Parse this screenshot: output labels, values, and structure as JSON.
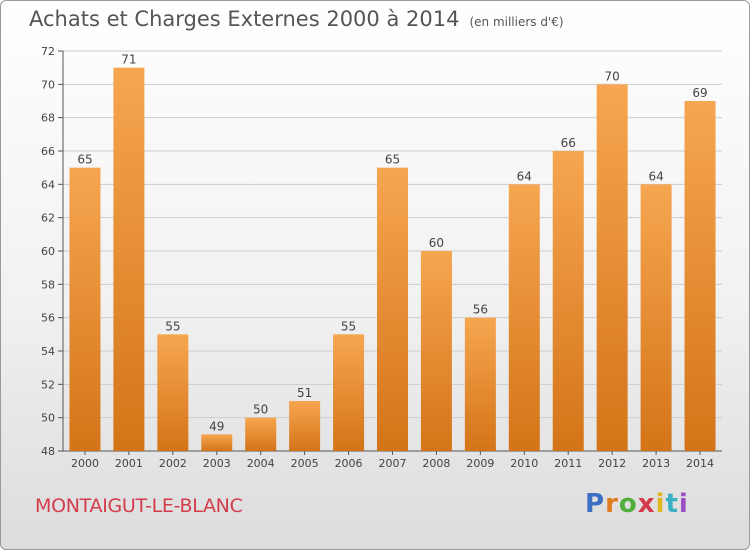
{
  "header": {
    "title": "Achats et Charges Externes 2000 à 2014",
    "subtitle": "(en milliers d'€)"
  },
  "footer": {
    "city": "MONTAIGUT-LE-BLANC",
    "logo": "Proxiti",
    "logo_colors": [
      "#3b6fc4",
      "#e07b1e",
      "#4fae3c",
      "#d43c4c",
      "#e0b81e",
      "#3bb0c4",
      "#9c4fc4"
    ]
  },
  "colors": {
    "bar_top": "#f6a650",
    "bar_bottom": "#d47418",
    "grid": "#cccccc",
    "axis": "#555555"
  },
  "chart_data": {
    "type": "bar",
    "title": "Achats et Charges Externes 2000 à 2014",
    "subtitle": "(en milliers d'€)",
    "categories": [
      "2000",
      "2001",
      "2002",
      "2003",
      "2004",
      "2005",
      "2006",
      "2007",
      "2008",
      "2009",
      "2010",
      "2011",
      "2012",
      "2013",
      "2014"
    ],
    "values": [
      65,
      71,
      55,
      49,
      50,
      51,
      55,
      65,
      60,
      56,
      64,
      66,
      70,
      64,
      69
    ],
    "ylim": [
      48,
      72
    ],
    "yticks": [
      48,
      50,
      52,
      54,
      56,
      58,
      60,
      62,
      64,
      66,
      68,
      70,
      72
    ],
    "grid": true,
    "data_labels": true
  }
}
